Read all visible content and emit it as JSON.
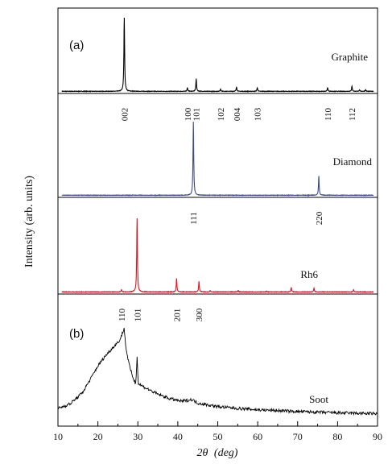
{
  "chart_data": {
    "type": "line",
    "xlabel_symbol": "2θ",
    "xlabel_unit": "(deg)",
    "ylabel": "Intensity (arb. units)",
    "xlim": [
      10,
      90
    ],
    "xticks": [
      10,
      20,
      30,
      40,
      50,
      60,
      70,
      80,
      90
    ],
    "panel_labels": [
      "(a)",
      "(b)"
    ],
    "colors": {
      "Graphite": "#000000",
      "Diamond": "#3a4a8c",
      "Rh6": "#e0141e",
      "Soot": "#000000"
    },
    "series": [
      {
        "name": "Graphite",
        "peaks": [
          [
            26.6,
            1.0
          ],
          [
            42.4,
            0.05
          ],
          [
            44.6,
            0.17
          ],
          [
            50.7,
            0.03
          ],
          [
            54.7,
            0.06
          ],
          [
            59.9,
            0.05
          ],
          [
            77.5,
            0.05
          ],
          [
            83.6,
            0.07
          ],
          [
            85.5,
            0.02
          ],
          [
            87.0,
            0.02
          ]
        ],
        "peak_labels": [
          {
            "text": "002",
            "x": 26.6
          },
          {
            "text": "100",
            "x": 42.4
          },
          {
            "text": "101",
            "x": 44.6
          },
          {
            "text": "102",
            "x": 50.7
          },
          {
            "text": "004",
            "x": 54.7
          },
          {
            "text": "103",
            "x": 59.9
          },
          {
            "text": "110",
            "x": 77.5
          },
          {
            "text": "112",
            "x": 83.6
          }
        ]
      },
      {
        "name": "Diamond",
        "peaks": [
          [
            43.9,
            1.0
          ],
          [
            75.3,
            0.26
          ]
        ],
        "peak_labels": [
          {
            "text": "111",
            "x": 43.9
          },
          {
            "text": "220",
            "x": 75.3
          }
        ]
      },
      {
        "name": "Rh6",
        "peaks": [
          [
            25.9,
            0.03
          ],
          [
            29.8,
            1.0
          ],
          [
            39.7,
            0.18
          ],
          [
            45.3,
            0.14
          ],
          [
            48.1,
            0.02
          ],
          [
            55.1,
            0.02
          ],
          [
            62.2,
            0.01
          ],
          [
            68.4,
            0.06
          ],
          [
            74.1,
            0.05
          ],
          [
            84.0,
            0.03
          ]
        ],
        "peak_labels": [
          {
            "text": "110",
            "x": 25.9
          },
          {
            "text": "101",
            "x": 29.8
          },
          {
            "text": "201",
            "x": 39.7
          },
          {
            "text": "300",
            "x": 45.3
          }
        ]
      },
      {
        "name": "Soot",
        "profile": [
          [
            10,
            0.1
          ],
          [
            13,
            0.15
          ],
          [
            16,
            0.27
          ],
          [
            18,
            0.42
          ],
          [
            20,
            0.58
          ],
          [
            22,
            0.7
          ],
          [
            24,
            0.8
          ],
          [
            25.5,
            0.87
          ],
          [
            26.2,
            0.96
          ],
          [
            26.6,
            1.0
          ],
          [
            27.0,
            0.78
          ],
          [
            28,
            0.56
          ],
          [
            29,
            0.42
          ],
          [
            29.5,
            0.38
          ],
          [
            29.8,
            0.7
          ],
          [
            30.1,
            0.38
          ],
          [
            32,
            0.33
          ],
          [
            35,
            0.26
          ],
          [
            38,
            0.21
          ],
          [
            41,
            0.18
          ],
          [
            43.5,
            0.2
          ],
          [
            45,
            0.16
          ],
          [
            50,
            0.12
          ],
          [
            55,
            0.1
          ],
          [
            60,
            0.085
          ],
          [
            70,
            0.065
          ],
          [
            80,
            0.05
          ],
          [
            90,
            0.04
          ]
        ]
      }
    ]
  }
}
